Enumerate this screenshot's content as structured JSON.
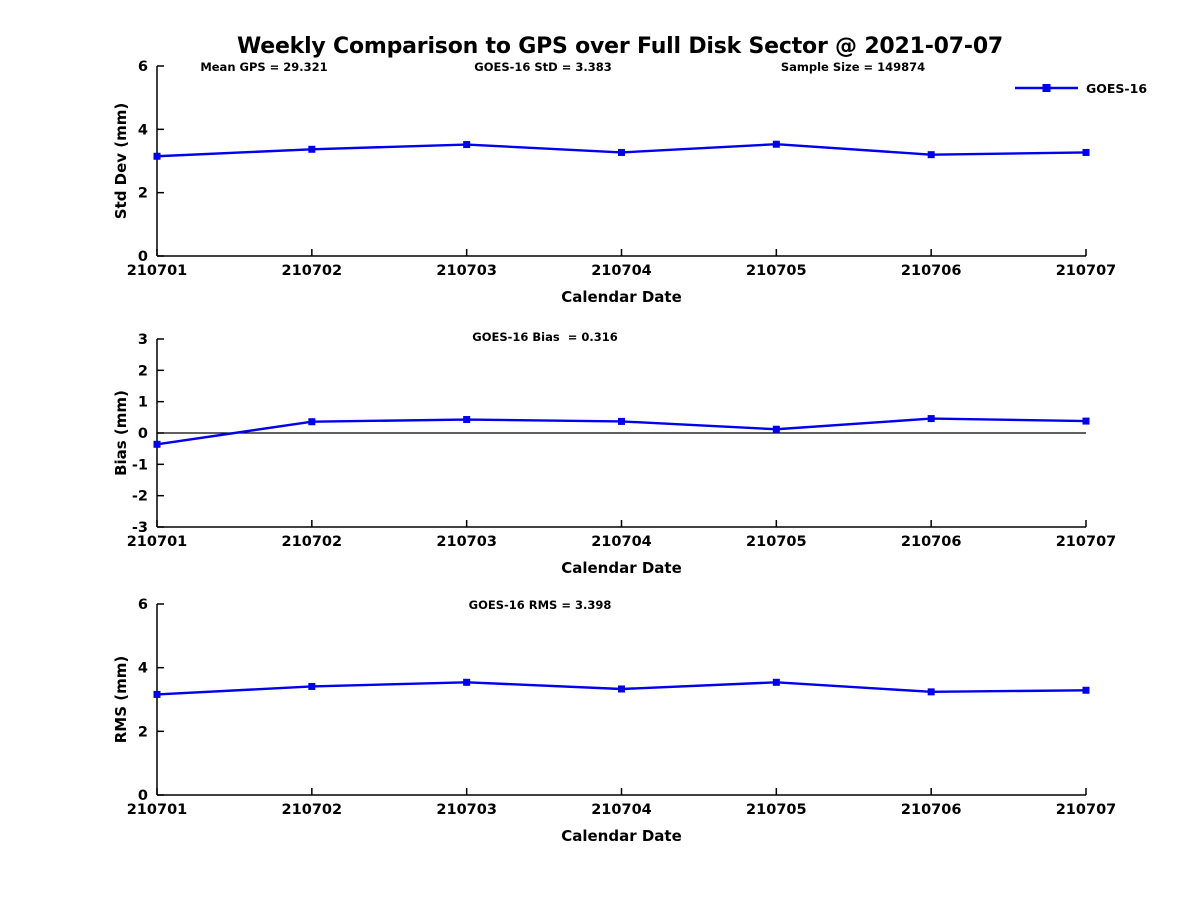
{
  "title": "Weekly Comparison to GPS over Full Disk Sector @ 2021-07-07",
  "colors": {
    "series": "#0000EE",
    "axis": "#000000",
    "background": "#FFFFFF"
  },
  "legend": {
    "label": "GOES-16",
    "position": "top-right",
    "border": false
  },
  "chart_data": [
    {
      "type": "line",
      "title": "",
      "xlabel": "Calendar Date",
      "ylabel": "Std Dev (mm)",
      "categories": [
        "210701",
        "210702",
        "210703",
        "210704",
        "210705",
        "210706",
        "210707"
      ],
      "series": [
        {
          "name": "GOES-16",
          "marker": "square",
          "values": [
            3.15,
            3.37,
            3.52,
            3.27,
            3.53,
            3.2,
            3.27
          ]
        }
      ],
      "ylim": [
        0,
        6
      ],
      "yticks": [
        0,
        2,
        4,
        6
      ],
      "grid": false,
      "annotations": [
        "Mean GPS = 29.321",
        "GOES-16 StD = 3.383",
        "Sample Size = 149874"
      ]
    },
    {
      "type": "line",
      "title": "",
      "xlabel": "Calendar Date",
      "ylabel": "Bias (mm)",
      "categories": [
        "210701",
        "210702",
        "210703",
        "210704",
        "210705",
        "210706",
        "210707"
      ],
      "series": [
        {
          "name": "GOES-16",
          "marker": "square",
          "values": [
            -0.36,
            0.36,
            0.43,
            0.37,
            0.12,
            0.46,
            0.38
          ]
        }
      ],
      "ylim": [
        -3,
        3
      ],
      "yticks": [
        -3,
        -2,
        -1,
        0,
        1,
        2,
        3
      ],
      "grid": false,
      "zero_line": true,
      "annotations": [
        "GOES-16 Bias  = 0.316"
      ]
    },
    {
      "type": "line",
      "title": "",
      "xlabel": "Calendar Date",
      "ylabel": "RMS (mm)",
      "categories": [
        "210701",
        "210702",
        "210703",
        "210704",
        "210705",
        "210706",
        "210707"
      ],
      "series": [
        {
          "name": "GOES-16",
          "marker": "square",
          "values": [
            3.16,
            3.41,
            3.54,
            3.33,
            3.54,
            3.24,
            3.29
          ]
        }
      ],
      "ylim": [
        0,
        6
      ],
      "yticks": [
        0,
        2,
        4,
        6
      ],
      "grid": false,
      "annotations": [
        "GOES-16 RMS = 3.398"
      ]
    }
  ]
}
